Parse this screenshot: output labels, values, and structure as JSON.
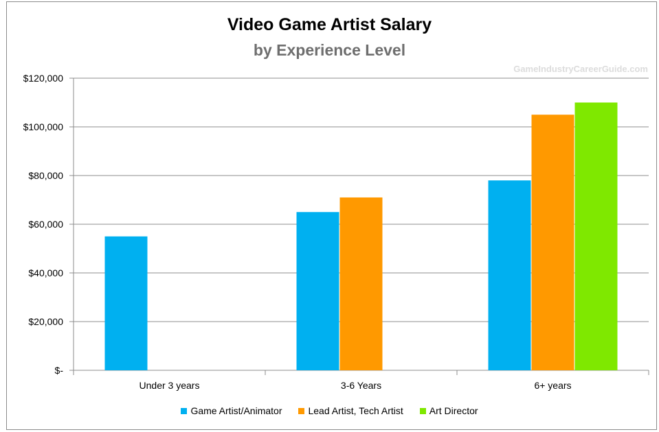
{
  "chart_data": {
    "type": "bar",
    "title": "Video Game Artist Salary",
    "subtitle": "by Experience Level",
    "watermark": "GameIndustryCareerGuide.com",
    "categories": [
      "Under 3 years",
      "3-6 Years",
      "6+ years"
    ],
    "series": [
      {
        "name": "Game Artist/Animator",
        "color": "#00b0f0",
        "values": [
          55000,
          65000,
          78000
        ]
      },
      {
        "name": "Lead Artist, Tech Artist",
        "color": "#ff9900",
        "values": [
          null,
          71000,
          105000
        ]
      },
      {
        "name": "Art Director",
        "color": "#7fe800",
        "values": [
          null,
          null,
          110000
        ]
      }
    ],
    "ylim": [
      0,
      120000
    ],
    "yticks": [
      0,
      20000,
      40000,
      60000,
      80000,
      100000,
      120000
    ],
    "ytick_labels": [
      "$-",
      "$20,000",
      "$40,000",
      "$60,000",
      "$80,000",
      "$100,000",
      "$120,000"
    ],
    "grid": true,
    "legend": "bottom"
  }
}
